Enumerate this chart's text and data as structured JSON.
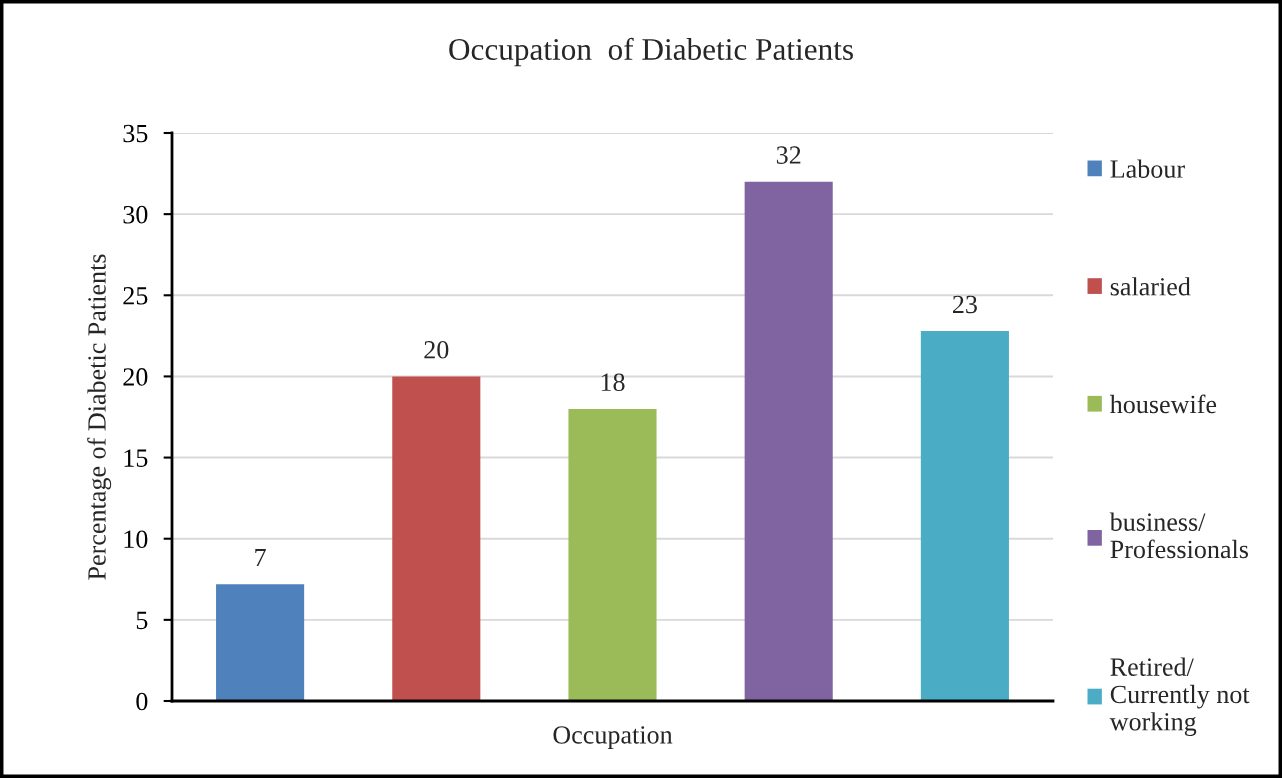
{
  "chart_data": {
    "type": "bar",
    "title": "Occupation  of Diabetic Patients",
    "xlabel": "Occupation",
    "ylabel": "Percentage of Diabetic Patients",
    "categories": [
      null
    ],
    "series": [
      {
        "name": "Labour",
        "color": "#4f81bd",
        "values": [
          7.2
        ],
        "value_labels": [
          "7"
        ]
      },
      {
        "name": "salaried",
        "color": "#c0504d",
        "values": [
          20
        ],
        "value_labels": [
          "20"
        ]
      },
      {
        "name": "housewife",
        "color": "#9bbb59",
        "values": [
          18
        ],
        "value_labels": [
          "18"
        ]
      },
      {
        "name": "business/\nProfessionals",
        "color": "#8064a2",
        "values": [
          32
        ],
        "value_labels": [
          "32"
        ]
      },
      {
        "name": "Retired/\nCurrently not\nworking",
        "color": "#4bacc6",
        "values": [
          22.8
        ],
        "value_labels": [
          "23"
        ]
      }
    ],
    "ylim": [
      0,
      35
    ],
    "yticks": [
      0,
      5,
      10,
      15,
      20,
      25,
      30,
      35
    ],
    "grid": "y",
    "legend": "right"
  }
}
